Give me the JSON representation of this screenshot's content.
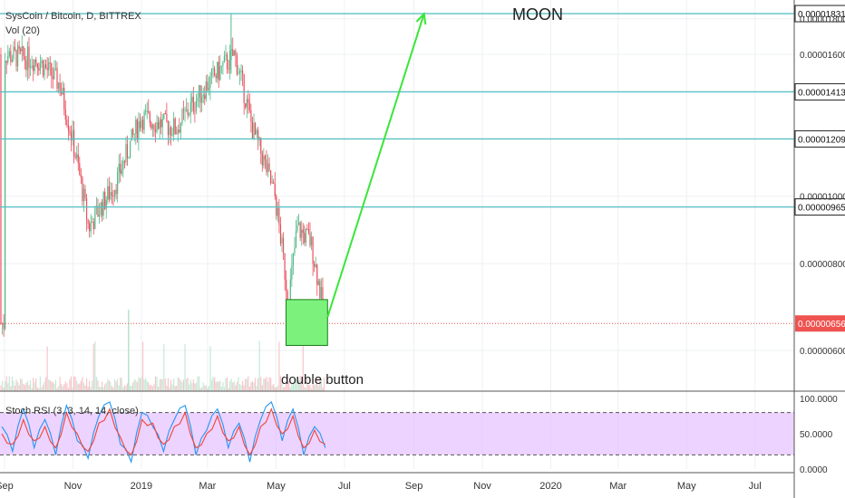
{
  "header": {
    "symbol_line": "SysCoin / Bitcoin, D, BITTREX",
    "volume_line": "Vol (20)"
  },
  "annotations": {
    "moon": "MOON",
    "double_bottom": "double button"
  },
  "colors": {
    "up": "#53b987",
    "down": "#eb4d5c",
    "level_line": "#5bc0c6",
    "arrow": "#39e639",
    "box_fill": "#7cf27c",
    "stoch_band": "#e5c1ff",
    "stoch_k": "#2196f3",
    "stoch_d": "#f44336",
    "last_price": "#ef5350"
  },
  "chart_data": [
    {
      "type": "candlestick",
      "title": "SysCoin / Bitcoin, D, BITTREX",
      "y_ticks": [
        "0.00001800",
        "0.00001600",
        "0.00001000",
        "0.00000800",
        "0.00000600"
      ],
      "ylim": [
        5.6e-06,
        1.87e-05
      ],
      "x_ticks": [
        "Sep",
        "Nov",
        "2019",
        "Mar",
        "May",
        "Jul",
        "Sep",
        "Nov",
        "2020",
        "Mar",
        "May",
        "Jul"
      ],
      "horizontal_levels": [
        {
          "value": 1.831e-05,
          "label": "0.00001831"
        },
        {
          "value": 1.413e-05,
          "label": "0.00001413"
        },
        {
          "value": 1.209e-05,
          "label": "0.00001209"
        },
        {
          "value": 9.65e-06,
          "label": "0.00000965"
        }
      ],
      "last_price": {
        "value": 6.56e-06,
        "label": "0.00000656"
      },
      "key_points": [
        {
          "date": "2018-09-01",
          "close": 1.6e-05
        },
        {
          "date": "2018-10-01",
          "close": 1.57e-05
        },
        {
          "date": "2018-10-20",
          "close": 1.45e-05
        },
        {
          "date": "2018-11-15",
          "close": 9e-06
        },
        {
          "date": "2018-12-10",
          "close": 1.05e-05
        },
        {
          "date": "2019-01-01",
          "close": 1.3e-05
        },
        {
          "date": "2019-02-01",
          "close": 1.25e-05
        },
        {
          "date": "2019-03-01",
          "close": 1.45e-05
        },
        {
          "date": "2019-03-25",
          "close": 1.6e-05
        },
        {
          "date": "2019-04-10",
          "close": 1.25e-05
        },
        {
          "date": "2019-04-30",
          "close": 1e-05
        },
        {
          "date": "2019-05-12",
          "close": 7e-06
        },
        {
          "date": "2019-05-20",
          "close": 9e-06
        },
        {
          "date": "2019-06-01",
          "close": 8.6e-06
        },
        {
          "date": "2019-06-14",
          "close": 6.56e-06
        }
      ],
      "projection_arrow": {
        "from": {
          "date": "2019-06-16",
          "value": 6.7e-06
        },
        "to": {
          "date": "2019-09-10",
          "value": 1.83e-05
        }
      },
      "double_bottom_zone": {
        "from": "2019-05-10",
        "to": "2019-06-16",
        "low": 6.1e-06,
        "high": 7.1e-06
      }
    },
    {
      "type": "line",
      "title": "Stoch RSI (3, 3, 14, 14, close)",
      "y_ticks": [
        "100.0000",
        "50.0000",
        "0.0000"
      ],
      "ylim": [
        0,
        100
      ],
      "band": [
        20,
        80
      ],
      "series": [
        {
          "values": [
            60,
            25,
            85,
            30,
            70,
            20,
            90,
            40,
            15,
            75,
            95,
            35,
            10,
            80,
            60,
            25,
            70,
            90,
            20,
            55,
            85,
            30,
            65,
            10,
            70,
            95,
            40,
            85,
            20,
            60,
            30
          ]
        },
        {
          "values": [
            50,
            35,
            70,
            40,
            60,
            30,
            80,
            50,
            25,
            65,
            85,
            45,
            20,
            70,
            65,
            35,
            60,
            80,
            30,
            50,
            75,
            40,
            60,
            20,
            60,
            85,
            50,
            75,
            30,
            55,
            35
          ]
        }
      ]
    }
  ]
}
